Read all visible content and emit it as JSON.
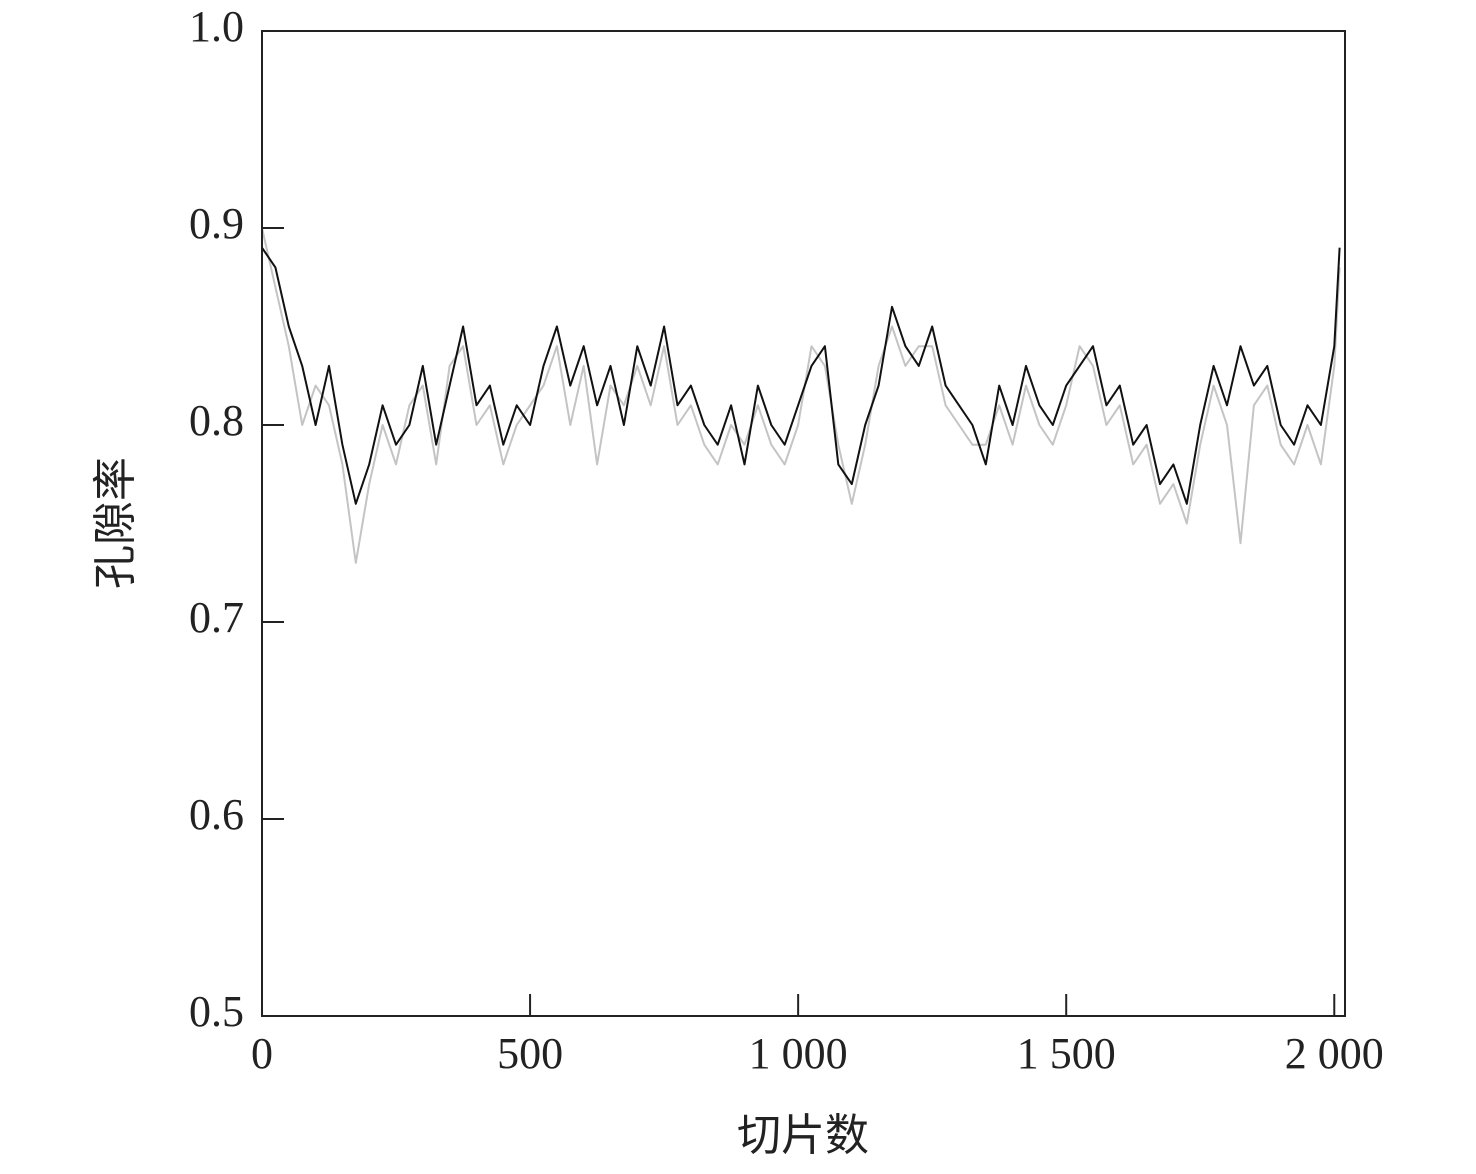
{
  "chart_data": {
    "type": "line",
    "x_label": "切片数",
    "y_label": "孔隙率",
    "x": [
      0,
      25,
      50,
      75,
      100,
      125,
      150,
      175,
      200,
      225,
      250,
      275,
      300,
      325,
      350,
      375,
      400,
      425,
      450,
      475,
      500,
      525,
      550,
      575,
      600,
      625,
      650,
      675,
      700,
      725,
      750,
      775,
      800,
      825,
      850,
      875,
      900,
      925,
      950,
      975,
      1000,
      1025,
      1050,
      1075,
      1100,
      1125,
      1150,
      1175,
      1200,
      1225,
      1250,
      1275,
      1300,
      1325,
      1350,
      1375,
      1400,
      1425,
      1450,
      1475,
      1500,
      1525,
      1550,
      1575,
      1600,
      1625,
      1650,
      1675,
      1700,
      1725,
      1750,
      1775,
      1800,
      1825,
      1850,
      1875,
      1900,
      1925,
      1950,
      1975,
      2000,
      2010
    ],
    "series": [
      {
        "color": "#c4c4c4",
        "values": [
          0.9,
          0.87,
          0.84,
          0.8,
          0.82,
          0.81,
          0.78,
          0.73,
          0.77,
          0.8,
          0.78,
          0.81,
          0.82,
          0.78,
          0.83,
          0.84,
          0.8,
          0.81,
          0.78,
          0.8,
          0.81,
          0.82,
          0.84,
          0.8,
          0.83,
          0.78,
          0.82,
          0.81,
          0.83,
          0.81,
          0.84,
          0.8,
          0.81,
          0.79,
          0.78,
          0.8,
          0.79,
          0.81,
          0.79,
          0.78,
          0.8,
          0.84,
          0.83,
          0.79,
          0.76,
          0.79,
          0.83,
          0.85,
          0.83,
          0.84,
          0.84,
          0.81,
          0.8,
          0.79,
          0.79,
          0.81,
          0.79,
          0.82,
          0.8,
          0.79,
          0.81,
          0.84,
          0.83,
          0.8,
          0.81,
          0.78,
          0.79,
          0.76,
          0.77,
          0.75,
          0.79,
          0.82,
          0.8,
          0.74,
          0.81,
          0.82,
          0.79,
          0.78,
          0.8,
          0.78,
          0.83,
          0.88
        ]
      },
      {
        "color": "#111111",
        "values": [
          0.89,
          0.88,
          0.85,
          0.83,
          0.8,
          0.83,
          0.79,
          0.76,
          0.78,
          0.81,
          0.79,
          0.8,
          0.83,
          0.79,
          0.82,
          0.85,
          0.81,
          0.82,
          0.79,
          0.81,
          0.8,
          0.83,
          0.85,
          0.82,
          0.84,
          0.81,
          0.83,
          0.8,
          0.84,
          0.82,
          0.85,
          0.81,
          0.82,
          0.8,
          0.79,
          0.81,
          0.78,
          0.82,
          0.8,
          0.79,
          0.81,
          0.83,
          0.84,
          0.78,
          0.77,
          0.8,
          0.82,
          0.86,
          0.84,
          0.83,
          0.85,
          0.82,
          0.81,
          0.8,
          0.78,
          0.82,
          0.8,
          0.83,
          0.81,
          0.8,
          0.82,
          0.83,
          0.84,
          0.81,
          0.82,
          0.79,
          0.8,
          0.77,
          0.78,
          0.76,
          0.8,
          0.83,
          0.81,
          0.84,
          0.82,
          0.83,
          0.8,
          0.79,
          0.81,
          0.8,
          0.84,
          0.89
        ]
      }
    ],
    "xlim": [
      0,
      2020
    ],
    "ylim": [
      0.5,
      1.0
    ],
    "xticks": [
      0,
      500,
      {
        "value": 1000,
        "label": "1 000"
      },
      {
        "value": 1500,
        "label": "1 500"
      },
      {
        "value": 2000,
        "label": "2 000"
      }
    ],
    "yticks": [
      0.5,
      0.6,
      0.7,
      0.8,
      0.9,
      {
        "value": 1.0,
        "label": "1.0"
      }
    ]
  }
}
